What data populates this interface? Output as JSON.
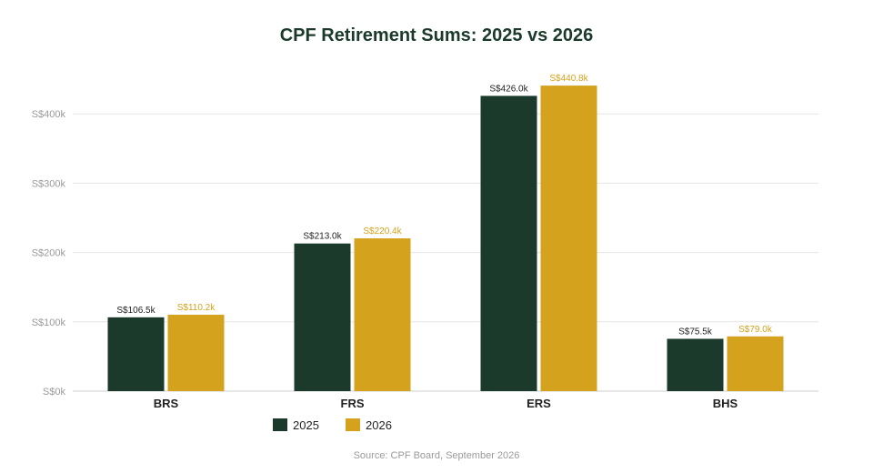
{
  "chart_data": {
    "type": "bar",
    "title": "CPF Retirement Sums: 2025 vs 2026",
    "categories": [
      "BRS",
      "FRS",
      "ERS",
      "BHS"
    ],
    "series": [
      {
        "name": "2025",
        "values": [
          106.5,
          213.0,
          426.0,
          75.5
        ],
        "labels": [
          "S$106.5k",
          "S$213.0k",
          "S$426.0k",
          "S$75.5k"
        ],
        "color": "#1b3a2b",
        "label_color": "#222222"
      },
      {
        "name": "2026",
        "values": [
          110.2,
          220.4,
          440.8,
          79.0
        ],
        "labels": [
          "S$110.2k",
          "S$220.4k",
          "S$440.8k",
          "S$79.0k"
        ],
        "color": "#d4a21c",
        "label_color": "#d4a21c"
      }
    ],
    "y_ticks": [
      0,
      100,
      200,
      300,
      400
    ],
    "y_tick_labels": [
      "S$0k",
      "S$100k",
      "S$200k",
      "S$300k",
      "S$400k"
    ],
    "ylim": [
      0,
      440
    ],
    "xlabel": "",
    "ylabel": "",
    "grid": true,
    "legend_position": "bottom-left",
    "source": "Source: CPF Board, September 2026"
  }
}
